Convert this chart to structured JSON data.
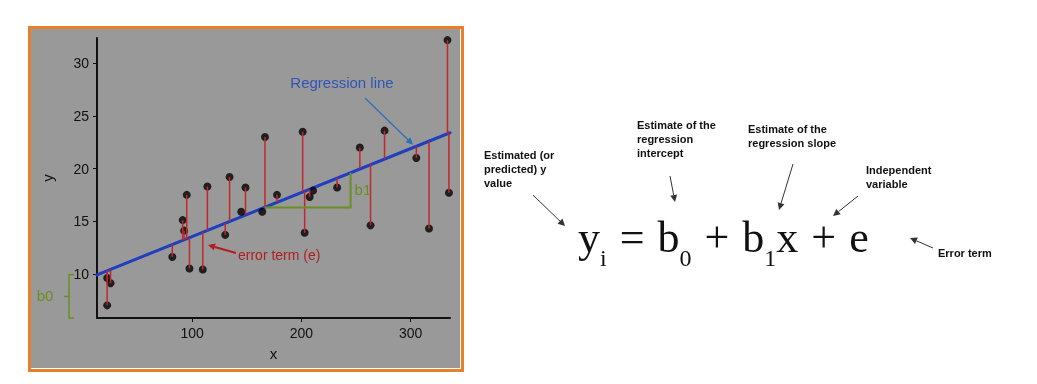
{
  "chart_data": {
    "type": "scatter",
    "xlabel": "x",
    "ylabel": "y",
    "xlim": [
      13,
      336
    ],
    "ylim": [
      5.8,
      32.4
    ],
    "xticks": [
      100,
      200,
      300
    ],
    "yticks": [
      10,
      15,
      20,
      25,
      30
    ],
    "grid": false,
    "marker": "circle",
    "series": [
      {
        "type": "scatter",
        "color": "#000000",
        "x": [
          22.3,
          25.4,
          22.3,
          81.9,
          91.4,
          92.7,
          95.1,
          97.6,
          109.8,
          114,
          130.3,
          134.3,
          148.9,
          145,
          164.2,
          166.7,
          177.7,
          201.2,
          203,
          207.6,
          210.7,
          232.7,
          253.5,
          263.3,
          276.1,
          305.2,
          316.8,
          333.7,
          335
        ],
        "values": [
          9.6,
          9.1,
          7.0,
          11.6,
          15.1,
          14.1,
          17.5,
          10.5,
          10.4,
          18.3,
          13.7,
          19.2,
          18.2,
          15.9,
          15.9,
          23.0,
          17.5,
          23.5,
          13.9,
          17.3,
          17.9,
          18.2,
          22.0,
          14.6,
          23.6,
          21.0,
          14.3,
          32.2,
          17.7
        ],
        "errors": [
          [
            9.6,
            10.3
          ],
          [
            9.1,
            10.4
          ],
          [
            7.0,
            10.3
          ],
          [
            11.6,
            12.8
          ],
          [
            13.2,
            15.1
          ],
          [
            13.2,
            14.1
          ],
          [
            13.3,
            17.5
          ],
          [
            10.5,
            13.4
          ],
          [
            10.4,
            14.0
          ],
          [
            14.1,
            18.3
          ],
          [
            13.7,
            14.8
          ],
          [
            15.0,
            19.2
          ],
          [
            15.6,
            18.2
          ],
          null,
          null,
          [
            16.3,
            23.0
          ],
          [
            16.8,
            17.5
          ],
          [
            17.8,
            23.5
          ],
          [
            13.9,
            17.8
          ],
          [
            17.3,
            18.0
          ],
          null,
          [
            18.2,
            19.1
          ],
          [
            20.0,
            22.0
          ],
          [
            14.6,
            20.4
          ],
          [
            20.9,
            23.6
          ],
          [
            21.0,
            22.1
          ],
          [
            14.3,
            22.6
          ],
          [
            23.3,
            32.2
          ],
          [
            17.7,
            23.4
          ]
        ]
      },
      {
        "type": "line",
        "color": "#1f3fbf",
        "marker": "none",
        "x": [
          13,
          336
        ],
        "values": [
          9.9,
          23.4
        ]
      }
    ],
    "annotations": [
      "Regression line",
      "error term (e)",
      {
        "text": "b1",
        "x": 245,
        "y": 19.6
      },
      "b0",
      "Estimated (or predicted) y value",
      "Estimate of the regression intercept",
      "Estimate of the regression slope",
      "Independent variable",
      "Error term",
      "y$_{i}$ = b$_{0}$ + b$_{1}$x + e"
    ]
  }
}
